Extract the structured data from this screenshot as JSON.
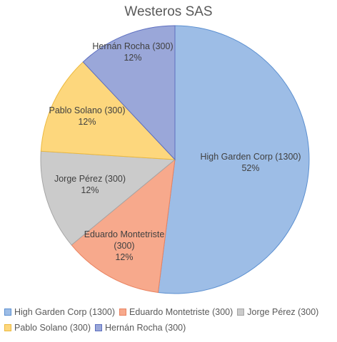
{
  "chart_data": {
    "type": "pie",
    "title": "Westeros SAS",
    "slices": [
      {
        "name": "High Garden Corp (1300)",
        "value": 1300,
        "label_lines": [
          "High Garden Corp (1300)",
          "52%"
        ],
        "color": "#9dbde6",
        "stroke": "#5b8fd0"
      },
      {
        "name": "Eduardo Montetriste (300)",
        "value": 300,
        "label_lines": [
          "Eduardo Montetriste",
          "(300)",
          "12%"
        ],
        "color": "#f7a98c",
        "stroke": "#e9825f"
      },
      {
        "name": "Jorge Pérez (300)",
        "value": 300,
        "label_lines": [
          "Jorge Pérez (300)",
          "12%"
        ],
        "color": "#cbcbcb",
        "stroke": "#a5a5a5"
      },
      {
        "name": "Pablo Solano (300)",
        "value": 300,
        "label_lines": [
          "Pablo Solano (300)",
          "12%"
        ],
        "color": "#fdd77d",
        "stroke": "#ecb93e"
      },
      {
        "name": "Hernán Rocha (300)",
        "value": 300,
        "label_lines": [
          "Hernán Rocha (300)",
          "12%"
        ],
        "color": "#9aa7d9",
        "stroke": "#5d6fc0"
      }
    ],
    "legend": {
      "position": "bottom",
      "rows": [
        [
          "High Garden Corp (1300)",
          "Eduardo Montetriste (300)",
          "Jorge Pérez (300)"
        ],
        [
          "Pablo Solano (300)",
          "Hernán Rocha (300)"
        ]
      ]
    }
  }
}
